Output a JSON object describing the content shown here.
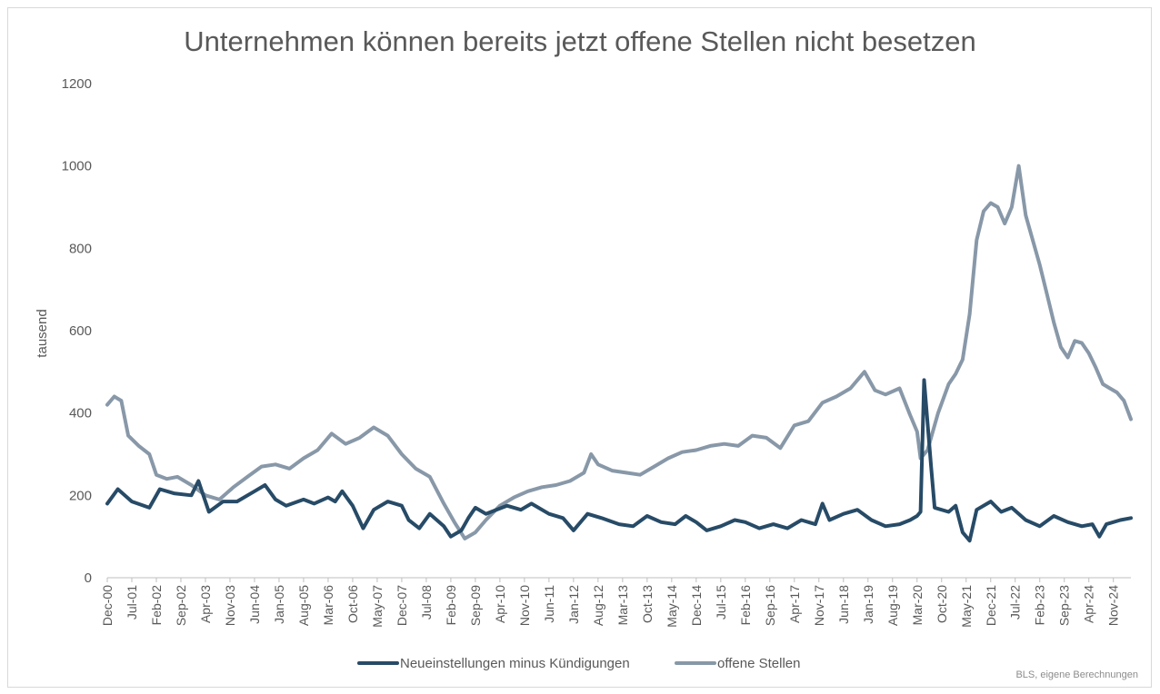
{
  "chart_data": {
    "type": "line",
    "title": "Unternehmen können bereits jetzt offene Stellen nicht besetzen",
    "ylabel": "tausend",
    "xlabel": "",
    "ylim": [
      0,
      1200
    ],
    "yticks": [
      0,
      200,
      400,
      600,
      800,
      1000,
      1200
    ],
    "xticks": [
      "Dec-00",
      "Jul-01",
      "Feb-02",
      "Sep-02",
      "Apr-03",
      "Nov-03",
      "Jun-04",
      "Jan-05",
      "Aug-05",
      "Mar-06",
      "Oct-06",
      "May-07",
      "Dec-07",
      "Jul-08",
      "Feb-09",
      "Sep-09",
      "Apr-10",
      "Nov-10",
      "Jun-11",
      "Jan-12",
      "Aug-12",
      "Mar-13",
      "Oct-13",
      "May-14",
      "Dec-14",
      "Jul-15",
      "Feb-16",
      "Sep-16",
      "Apr-17",
      "Nov-17",
      "Jun-18",
      "Jan-19",
      "Aug-19",
      "Mar-20",
      "Oct-20",
      "May-21",
      "Dec-21",
      "Jul-22",
      "Feb-23",
      "Sep-23",
      "Apr-24",
      "Nov-24"
    ],
    "grid": "off",
    "legend": "bottom",
    "series": [
      {
        "name": "Neueinstellungen minus Kündigungen",
        "color": "#274b67",
        "points": [
          [
            "2000-12",
            180
          ],
          [
            "2001-03",
            215
          ],
          [
            "2001-07",
            185
          ],
          [
            "2001-12",
            170
          ],
          [
            "2002-03",
            215
          ],
          [
            "2002-07",
            205
          ],
          [
            "2002-12",
            200
          ],
          [
            "2003-02",
            235
          ],
          [
            "2003-05",
            160
          ],
          [
            "2003-09",
            185
          ],
          [
            "2004-01",
            185
          ],
          [
            "2004-06",
            210
          ],
          [
            "2004-09",
            225
          ],
          [
            "2004-12",
            190
          ],
          [
            "2005-03",
            175
          ],
          [
            "2005-08",
            190
          ],
          [
            "2005-11",
            180
          ],
          [
            "2006-03",
            195
          ],
          [
            "2006-05",
            185
          ],
          [
            "2006-07",
            210
          ],
          [
            "2006-10",
            175
          ],
          [
            "2007-01",
            120
          ],
          [
            "2007-04",
            165
          ],
          [
            "2007-08",
            185
          ],
          [
            "2007-12",
            175
          ],
          [
            "2008-02",
            140
          ],
          [
            "2008-05",
            120
          ],
          [
            "2008-08",
            155
          ],
          [
            "2008-12",
            125
          ],
          [
            "2009-02",
            100
          ],
          [
            "2009-05",
            115
          ],
          [
            "2009-07",
            145
          ],
          [
            "2009-09",
            170
          ],
          [
            "2009-12",
            155
          ],
          [
            "2010-03",
            165
          ],
          [
            "2010-06",
            175
          ],
          [
            "2010-10",
            165
          ],
          [
            "2011-01",
            180
          ],
          [
            "2011-06",
            155
          ],
          [
            "2011-10",
            145
          ],
          [
            "2012-01",
            115
          ],
          [
            "2012-05",
            155
          ],
          [
            "2012-09",
            145
          ],
          [
            "2013-02",
            130
          ],
          [
            "2013-06",
            125
          ],
          [
            "2013-10",
            150
          ],
          [
            "2014-02",
            135
          ],
          [
            "2014-06",
            130
          ],
          [
            "2014-09",
            150
          ],
          [
            "2014-12",
            135
          ],
          [
            "2015-03",
            115
          ],
          [
            "2015-07",
            125
          ],
          [
            "2015-11",
            140
          ],
          [
            "2016-02",
            135
          ],
          [
            "2016-06",
            120
          ],
          [
            "2016-10",
            130
          ],
          [
            "2017-02",
            120
          ],
          [
            "2017-06",
            140
          ],
          [
            "2017-10",
            130
          ],
          [
            "2017-12",
            180
          ],
          [
            "2018-02",
            140
          ],
          [
            "2018-06",
            155
          ],
          [
            "2018-10",
            165
          ],
          [
            "2019-02",
            140
          ],
          [
            "2019-06",
            125
          ],
          [
            "2019-10",
            130
          ],
          [
            "2020-01",
            140
          ],
          [
            "2020-03",
            150
          ],
          [
            "2020-04",
            160
          ],
          [
            "2020-05",
            480
          ],
          [
            "2020-07",
            270
          ],
          [
            "2020-08",
            170
          ],
          [
            "2020-12",
            160
          ],
          [
            "2021-02",
            175
          ],
          [
            "2021-04",
            110
          ],
          [
            "2021-06",
            90
          ],
          [
            "2021-08",
            165
          ],
          [
            "2021-12",
            185
          ],
          [
            "2022-03",
            160
          ],
          [
            "2022-06",
            170
          ],
          [
            "2022-10",
            140
          ],
          [
            "2023-02",
            125
          ],
          [
            "2023-06",
            150
          ],
          [
            "2023-10",
            135
          ],
          [
            "2024-02",
            125
          ],
          [
            "2024-05",
            130
          ],
          [
            "2024-07",
            100
          ],
          [
            "2024-09",
            130
          ],
          [
            "2025-01",
            140
          ],
          [
            "2025-04",
            145
          ]
        ]
      },
      {
        "name": "offene Stellen",
        "color": "#8898a8",
        "points": [
          [
            "2000-12",
            420
          ],
          [
            "2001-02",
            440
          ],
          [
            "2001-04",
            430
          ],
          [
            "2001-06",
            345
          ],
          [
            "2001-09",
            320
          ],
          [
            "2001-12",
            300
          ],
          [
            "2002-02",
            250
          ],
          [
            "2002-05",
            240
          ],
          [
            "2002-08",
            245
          ],
          [
            "2002-12",
            225
          ],
          [
            "2003-04",
            200
          ],
          [
            "2003-08",
            190
          ],
          [
            "2003-12",
            220
          ],
          [
            "2004-04",
            245
          ],
          [
            "2004-08",
            270
          ],
          [
            "2004-12",
            275
          ],
          [
            "2005-04",
            265
          ],
          [
            "2005-08",
            290
          ],
          [
            "2005-12",
            310
          ],
          [
            "2006-04",
            350
          ],
          [
            "2006-08",
            325
          ],
          [
            "2006-12",
            340
          ],
          [
            "2007-04",
            365
          ],
          [
            "2007-08",
            345
          ],
          [
            "2007-12",
            300
          ],
          [
            "2008-04",
            265
          ],
          [
            "2008-08",
            245
          ],
          [
            "2008-12",
            180
          ],
          [
            "2009-03",
            135
          ],
          [
            "2009-06",
            95
          ],
          [
            "2009-09",
            110
          ],
          [
            "2009-12",
            140
          ],
          [
            "2010-04",
            175
          ],
          [
            "2010-08",
            195
          ],
          [
            "2010-12",
            210
          ],
          [
            "2011-04",
            220
          ],
          [
            "2011-08",
            225
          ],
          [
            "2011-12",
            235
          ],
          [
            "2012-04",
            255
          ],
          [
            "2012-06",
            300
          ],
          [
            "2012-08",
            275
          ],
          [
            "2012-12",
            260
          ],
          [
            "2013-04",
            255
          ],
          [
            "2013-08",
            250
          ],
          [
            "2013-12",
            270
          ],
          [
            "2014-04",
            290
          ],
          [
            "2014-08",
            305
          ],
          [
            "2014-12",
            310
          ],
          [
            "2015-04",
            320
          ],
          [
            "2015-08",
            325
          ],
          [
            "2015-12",
            320
          ],
          [
            "2016-04",
            345
          ],
          [
            "2016-08",
            340
          ],
          [
            "2016-12",
            315
          ],
          [
            "2017-04",
            370
          ],
          [
            "2017-08",
            380
          ],
          [
            "2017-12",
            425
          ],
          [
            "2018-04",
            440
          ],
          [
            "2018-08",
            460
          ],
          [
            "2018-12",
            500
          ],
          [
            "2019-03",
            455
          ],
          [
            "2019-06",
            445
          ],
          [
            "2019-10",
            460
          ],
          [
            "2020-01",
            395
          ],
          [
            "2020-03",
            355
          ],
          [
            "2020-04",
            290
          ],
          [
            "2020-06",
            310
          ],
          [
            "2020-09",
            400
          ],
          [
            "2020-12",
            470
          ],
          [
            "2021-02",
            495
          ],
          [
            "2021-04",
            530
          ],
          [
            "2021-06",
            640
          ],
          [
            "2021-08",
            820
          ],
          [
            "2021-10",
            890
          ],
          [
            "2021-12",
            910
          ],
          [
            "2022-02",
            900
          ],
          [
            "2022-04",
            860
          ],
          [
            "2022-06",
            900
          ],
          [
            "2022-08",
            1000
          ],
          [
            "2022-10",
            880
          ],
          [
            "2022-12",
            820
          ],
          [
            "2023-02",
            760
          ],
          [
            "2023-04",
            690
          ],
          [
            "2023-06",
            620
          ],
          [
            "2023-08",
            560
          ],
          [
            "2023-10",
            535
          ],
          [
            "2023-12",
            575
          ],
          [
            "2024-02",
            570
          ],
          [
            "2024-04",
            545
          ],
          [
            "2024-06",
            510
          ],
          [
            "2024-08",
            470
          ],
          [
            "2024-10",
            460
          ],
          [
            "2024-12",
            450
          ],
          [
            "2025-02",
            430
          ],
          [
            "2025-04",
            385
          ]
        ]
      }
    ]
  },
  "footer": {
    "source": "BLS, eigene Berechnungen"
  }
}
